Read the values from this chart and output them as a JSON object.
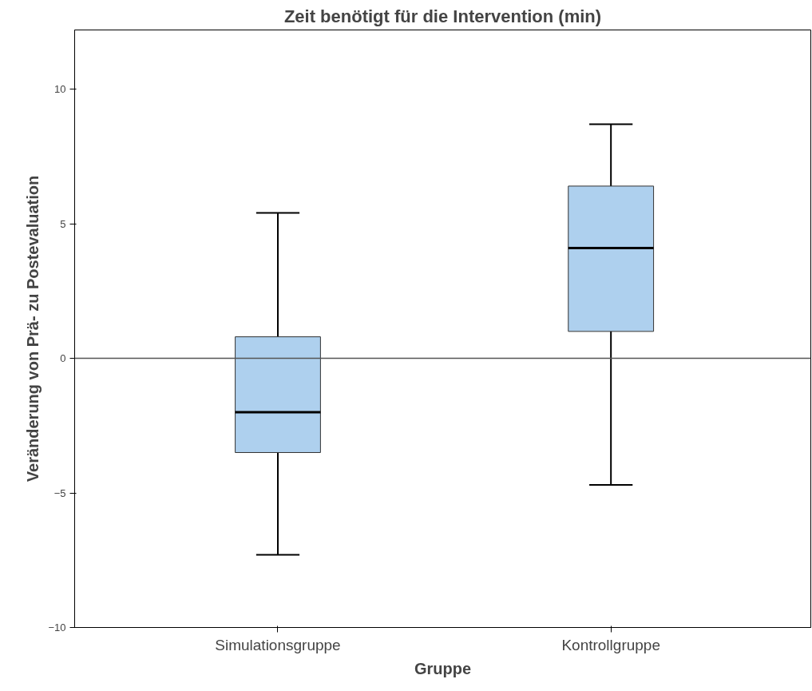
{
  "chart_data": {
    "type": "box",
    "title": "Zeit benötigt für die Intervention (min)",
    "xlabel": "Gruppe",
    "ylabel": "Veränderung von Prä- zu Postevaluation",
    "categories": [
      "Simulationsgruppe",
      "Kontrollgruppe"
    ],
    "series": [
      {
        "color": "#aed0ee",
        "boxes": [
          {
            "low": -7.3,
            "q1": -3.5,
            "median": -2.0,
            "q3": 0.8,
            "high": 5.4
          },
          {
            "low": -4.7,
            "q1": 1.0,
            "median": 4.1,
            "q3": 6.4,
            "high": 8.7
          }
        ]
      }
    ],
    "ylim": [
      -10,
      12.2
    ],
    "yticks": [
      -10,
      -5,
      0,
      5,
      10
    ],
    "ref_lines": [
      {
        "axis": "y",
        "value": 0,
        "label": null
      }
    ],
    "grid": false
  }
}
